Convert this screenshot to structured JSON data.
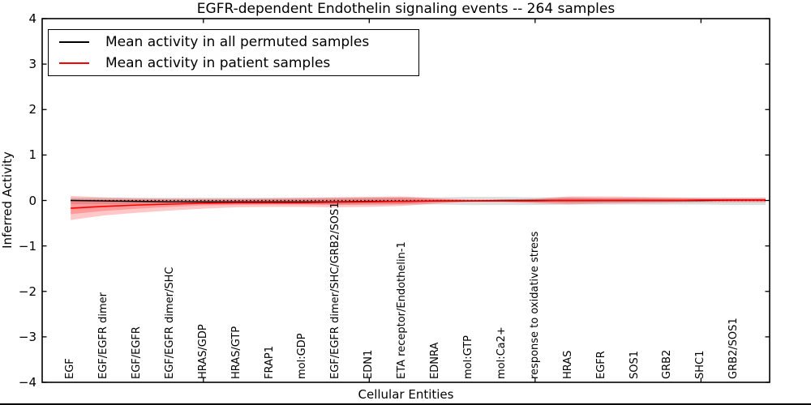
{
  "title": "EGFR-dependent Endothelin signaling events -- 264 samples",
  "legend": {
    "items": [
      {
        "label": "Mean activity in all permuted samples",
        "color": "#000000"
      },
      {
        "label": "Mean activity in patient samples",
        "color": "#ff0000"
      }
    ]
  },
  "chart_data": {
    "type": "line",
    "title": "EGFR-dependent Endothelin signaling events -- 264 samples",
    "xlabel": "Cellular Entities",
    "ylabel": "Inferred Activity",
    "ylim": [
      -4,
      4
    ],
    "yticks": [
      -4,
      -3,
      -2,
      -1,
      0,
      1,
      2,
      3,
      4
    ],
    "xticks": [
      5,
      10,
      15,
      20
    ],
    "xlim": [
      0.14,
      22.07
    ],
    "grid": false,
    "legend_position": "upper left",
    "axis_color": "#000000",
    "zero_reference_line": 0,
    "extends_to_right_spine": true,
    "categories": [
      "EGF",
      "EGF/EGFR dimer",
      "EGF/EGFR",
      "EGF/EGFR dimer/SHC",
      "HRAS/GDP",
      "HRAS/GTP",
      "FRAP1",
      "mol:GDP",
      "EGF/EGFR dimer/SHC/GRB2/SOS1",
      "EDN1",
      "ETA receptor/Endothelin-1",
      "EDNRA",
      "mol:GTP",
      "mol:Ca2+",
      "response to oxidative stress",
      "HRAS",
      "EGFR",
      "SOS1",
      "GRB2",
      "SHC1",
      "GRB2/SOS1"
    ],
    "series": [
      {
        "name": "mean-permuted",
        "label": "Mean activity in all permuted samples",
        "color": "#000000",
        "width": 1.4,
        "values": [
          0,
          -0.01,
          -0.02,
          -0.03,
          -0.03,
          -0.03,
          -0.03,
          -0.03,
          -0.03,
          -0.02,
          -0.02,
          -0.01,
          -0.01,
          0,
          0,
          0,
          0,
          0,
          0,
          0,
          0.01
        ]
      },
      {
        "name": "mean-patient",
        "label": "Mean activity in patient samples",
        "color": "#ff0000",
        "width": 1.6,
        "values": [
          -0.17,
          -0.13,
          -0.1,
          -0.08,
          -0.06,
          -0.05,
          -0.05,
          -0.05,
          -0.04,
          -0.03,
          -0.02,
          -0.01,
          -0.01,
          -0.01,
          -0.01,
          0,
          0,
          0,
          0,
          0.01,
          0.01
        ]
      }
    ],
    "bands": [
      {
        "name": "permuted-samples-band",
        "color": "#000000",
        "opacity": 0.13,
        "upper": [
          0.06,
          0.06,
          0.06,
          0.06,
          0.06,
          0.06,
          0.06,
          0.06,
          0.07,
          0.07,
          0.07,
          0.07,
          0.08,
          0.08,
          0.07,
          0.07,
          0.06,
          0.06,
          0.06,
          0.06,
          0.06
        ],
        "lower": [
          -0.08,
          -0.08,
          -0.08,
          -0.08,
          -0.08,
          -0.08,
          -0.08,
          -0.08,
          -0.09,
          -0.09,
          -0.09,
          -0.09,
          -0.1,
          -0.1,
          -0.1,
          -0.09,
          -0.09,
          -0.09,
          -0.09,
          -0.09,
          -0.1
        ]
      },
      {
        "name": "patient-samples-band-outer",
        "color": "#ff0000",
        "opacity": 0.22,
        "upper": [
          0.1,
          0.07,
          0.05,
          0.04,
          0.04,
          0.04,
          0.05,
          0.06,
          0.07,
          0.08,
          0.09,
          0.05,
          0.02,
          0.02,
          0.04,
          0.09,
          0.09,
          0.08,
          0.07,
          0.06,
          0.06
        ],
        "lower": [
          -0.43,
          -0.33,
          -0.27,
          -0.22,
          -0.18,
          -0.15,
          -0.14,
          -0.14,
          -0.15,
          -0.14,
          -0.12,
          -0.07,
          -0.03,
          -0.03,
          -0.06,
          -0.09,
          -0.07,
          -0.06,
          -0.05,
          -0.04,
          -0.04
        ]
      },
      {
        "name": "patient-samples-band-inner",
        "color": "#ff0000",
        "opacity": 0.22,
        "upper": [
          0.03,
          0.02,
          0.02,
          0.02,
          0.02,
          0.02,
          0.03,
          0.03,
          0.04,
          0.05,
          0.06,
          0.03,
          0.01,
          0.01,
          0.02,
          0.06,
          0.05,
          0.05,
          0.04,
          0.03,
          0.03
        ],
        "lower": [
          -0.3,
          -0.23,
          -0.18,
          -0.14,
          -0.11,
          -0.1,
          -0.09,
          -0.09,
          -0.1,
          -0.09,
          -0.08,
          -0.04,
          -0.02,
          -0.02,
          -0.03,
          -0.05,
          -0.04,
          -0.03,
          -0.03,
          -0.02,
          -0.02
        ]
      }
    ]
  }
}
